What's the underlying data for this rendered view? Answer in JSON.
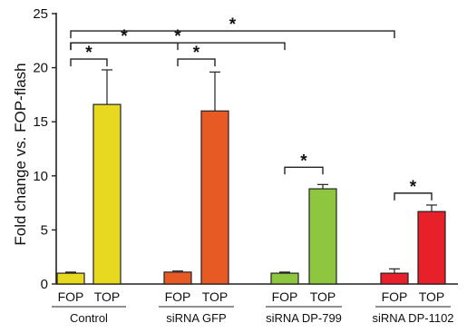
{
  "chart_data": {
    "type": "bar",
    "title": "",
    "ylabel": "Fold change vs. FOP-flash",
    "xlabel": "",
    "ylim": [
      0,
      25
    ],
    "yticks": [
      0,
      5,
      10,
      15,
      20,
      25
    ],
    "grid": false,
    "groups": [
      {
        "label": "Control",
        "bars": [
          {
            "label": "FOP",
            "value": 1.0,
            "error": 0.1,
            "color": "#e6d91f"
          },
          {
            "label": "TOP",
            "value": 16.6,
            "error": 3.2,
            "color": "#e6d91f"
          }
        ]
      },
      {
        "label": "siRNA GFP",
        "bars": [
          {
            "label": "FOP",
            "value": 1.1,
            "error": 0.1,
            "color": "#e85a24"
          },
          {
            "label": "TOP",
            "value": 16.0,
            "error": 3.6,
            "color": "#e85a24"
          }
        ]
      },
      {
        "label": "siRNA DP-799",
        "bars": [
          {
            "label": "FOP",
            "value": 1.0,
            "error": 0.1,
            "color": "#8ec63f"
          },
          {
            "label": "TOP",
            "value": 8.8,
            "error": 0.4,
            "color": "#8ec63f"
          }
        ]
      },
      {
        "label": "siRNA DP-1102",
        "bars": [
          {
            "label": "FOP",
            "value": 1.0,
            "error": 0.4,
            "color": "#e8202a"
          },
          {
            "label": "TOP",
            "value": 6.7,
            "error": 0.6,
            "color": "#e8202a"
          }
        ]
      }
    ],
    "significance": [
      {
        "from": [
          0,
          0
        ],
        "to": [
          0,
          1
        ],
        "y": 20.8,
        "label": "*"
      },
      {
        "from": [
          1,
          0
        ],
        "to": [
          1,
          1
        ],
        "y": 20.8,
        "label": "*"
      },
      {
        "from": [
          2,
          0
        ],
        "to": [
          2,
          1
        ],
        "y": 10.8,
        "label": "*"
      },
      {
        "from": [
          3,
          0
        ],
        "to": [
          3,
          1
        ],
        "y": 8.4,
        "label": "*"
      },
      {
        "from": [
          0,
          0
        ],
        "to": [
          1,
          0
        ],
        "y": 22.3,
        "label": "*"
      },
      {
        "from": [
          0,
          0
        ],
        "to": [
          2,
          0
        ],
        "y": 22.3,
        "label": "*"
      },
      {
        "from": [
          0,
          0
        ],
        "to": [
          3,
          0
        ],
        "y": 23.4,
        "label": "*"
      }
    ]
  }
}
